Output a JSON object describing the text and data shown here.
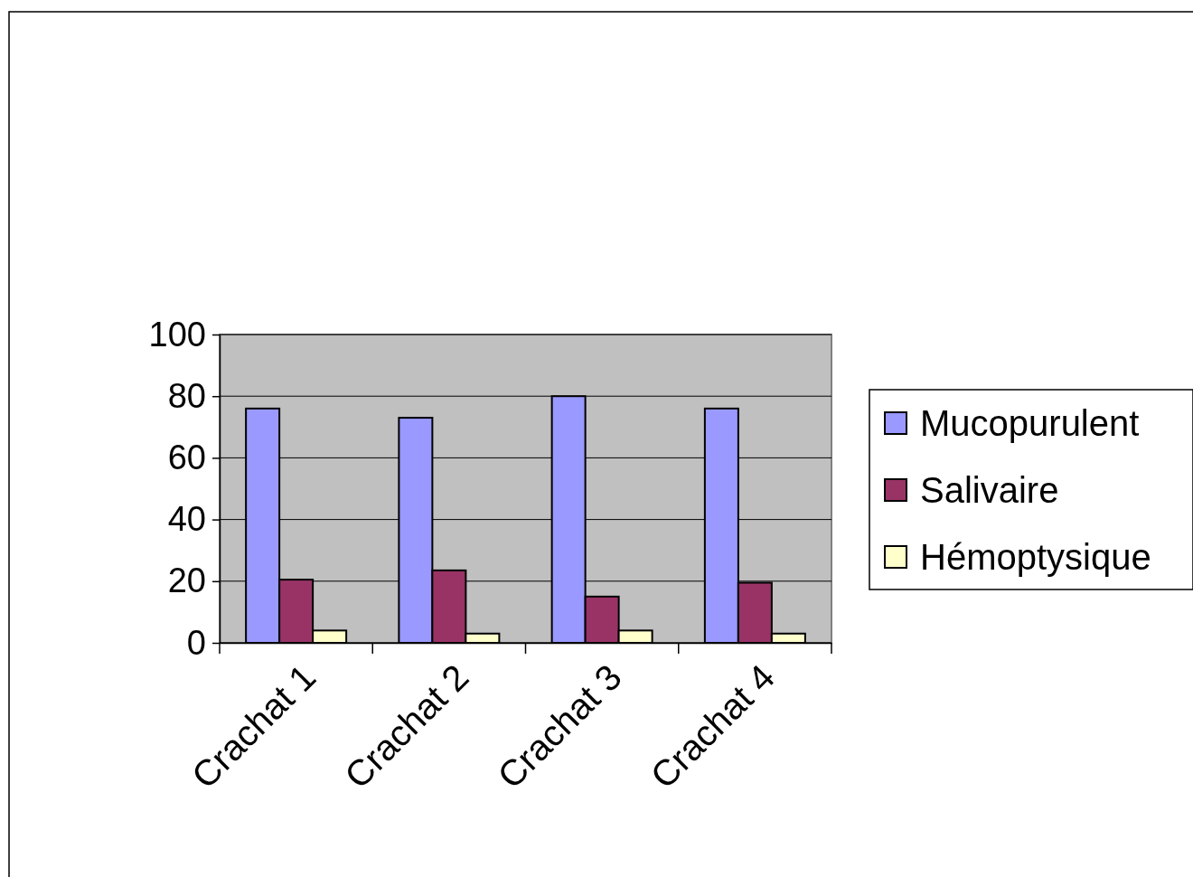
{
  "chart_data": {
    "type": "bar",
    "categories": [
      "Crachat 1",
      "Crachat 2",
      "Crachat 3",
      "Crachat 4"
    ],
    "series": [
      {
        "name": "Mucopurulent",
        "color": "#9999ff",
        "values": [
          76,
          73,
          80,
          76
        ]
      },
      {
        "name": "Salivaire",
        "color": "#993366",
        "values": [
          20.5,
          23.5,
          15,
          19.5
        ]
      },
      {
        "name": "Hémoptysique",
        "color": "#ffffcc",
        "values": [
          4,
          3,
          4,
          3
        ]
      }
    ],
    "ylim": [
      0,
      100
    ],
    "yticks": [
      0,
      20,
      40,
      60,
      80,
      100
    ],
    "grid": "y",
    "legend": "right"
  }
}
